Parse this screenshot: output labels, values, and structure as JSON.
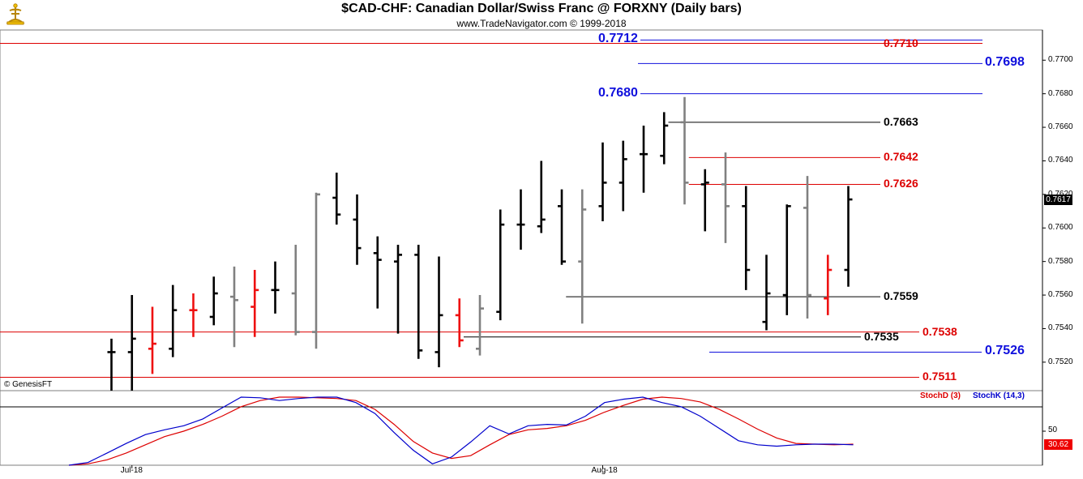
{
  "header": {
    "title": "$CAD-CHF:  Canadian Dollar/Swiss Franc @ FORXNY  (Daily bars)",
    "subtitle": "www.TradeNavigator.com © 1999-2018",
    "credit": "© GenesisFT"
  },
  "colors": {
    "black_bar": "#000000",
    "gray_bar": "#808080",
    "red_bar": "#ee1111",
    "blue_level": "#1010dd",
    "red_level": "#dd0000",
    "black_level": "#000000",
    "stoch_k": "#0000cc",
    "stoch_d": "#dd0000"
  },
  "chart_data": [
    {
      "type": "ohlc",
      "title": "$CAD-CHF:  Canadian Dollar/Swiss Franc @ FORXNY  (Daily bars)",
      "ylim": [
        0.75,
        0.7718
      ],
      "y_ticks": [
        "0.7520",
        "0.7540",
        "0.7560",
        "0.7580",
        "0.7600",
        "0.7620",
        "0.7640",
        "0.7660",
        "0.7680",
        "0.7700"
      ],
      "x_labels": [
        {
          "label": "Jul-18",
          "bar": 1
        },
        {
          "label": "Aug-18",
          "bar": 24
        }
      ],
      "last_price": "0.7617",
      "bars": [
        {
          "o": 0.7526,
          "h": 0.7534,
          "l": 0.75,
          "c": 0.7526,
          "color": "black"
        },
        {
          "o": 0.7526,
          "h": 0.756,
          "l": 0.75,
          "c": 0.7534,
          "color": "black"
        },
        {
          "o": 0.7528,
          "h": 0.7553,
          "l": 0.7513,
          "c": 0.7531,
          "color": "red"
        },
        {
          "o": 0.7528,
          "h": 0.7566,
          "l": 0.7523,
          "c": 0.7551,
          "color": "black"
        },
        {
          "o": 0.7551,
          "h": 0.7561,
          "l": 0.7535,
          "c": 0.7551,
          "color": "red"
        },
        {
          "o": 0.7547,
          "h": 0.7571,
          "l": 0.7542,
          "c": 0.7561,
          "color": "black"
        },
        {
          "o": 0.7559,
          "h": 0.7577,
          "l": 0.7529,
          "c": 0.7557,
          "color": "gray"
        },
        {
          "o": 0.7553,
          "h": 0.7575,
          "l": 0.7535,
          "c": 0.7563,
          "color": "red"
        },
        {
          "o": 0.7563,
          "h": 0.758,
          "l": 0.7549,
          "c": 0.7563,
          "color": "black"
        },
        {
          "o": 0.7561,
          "h": 0.759,
          "l": 0.7536,
          "c": 0.7538,
          "color": "gray"
        },
        {
          "o": 0.7538,
          "h": 0.7621,
          "l": 0.7528,
          "c": 0.762,
          "color": "gray"
        },
        {
          "o": 0.7618,
          "h": 0.7633,
          "l": 0.7602,
          "c": 0.7608,
          "color": "black"
        },
        {
          "o": 0.7605,
          "h": 0.762,
          "l": 0.7578,
          "c": 0.7588,
          "color": "black"
        },
        {
          "o": 0.7585,
          "h": 0.7595,
          "l": 0.7552,
          "c": 0.7581,
          "color": "black"
        },
        {
          "o": 0.758,
          "h": 0.759,
          "l": 0.7537,
          "c": 0.7584,
          "color": "black"
        },
        {
          "o": 0.7584,
          "h": 0.759,
          "l": 0.7522,
          "c": 0.7527,
          "color": "black"
        },
        {
          "o": 0.7526,
          "h": 0.7583,
          "l": 0.7517,
          "c": 0.7548,
          "color": "black"
        },
        {
          "o": 0.7548,
          "h": 0.7558,
          "l": 0.7529,
          "c": 0.7533,
          "color": "red"
        },
        {
          "o": 0.7528,
          "h": 0.756,
          "l": 0.7524,
          "c": 0.7552,
          "color": "gray"
        },
        {
          "o": 0.755,
          "h": 0.7611,
          "l": 0.7545,
          "c": 0.7602,
          "color": "black"
        },
        {
          "o": 0.7602,
          "h": 0.7623,
          "l": 0.7587,
          "c": 0.7602,
          "color": "black"
        },
        {
          "o": 0.7601,
          "h": 0.764,
          "l": 0.7597,
          "c": 0.7605,
          "color": "black"
        },
        {
          "o": 0.7613,
          "h": 0.7623,
          "l": 0.7578,
          "c": 0.758,
          "color": "black"
        },
        {
          "o": 0.758,
          "h": 0.7623,
          "l": 0.7543,
          "c": 0.7611,
          "color": "gray"
        },
        {
          "o": 0.7613,
          "h": 0.7651,
          "l": 0.7604,
          "c": 0.7627,
          "color": "black"
        },
        {
          "o": 0.7627,
          "h": 0.7652,
          "l": 0.761,
          "c": 0.7641,
          "color": "black"
        },
        {
          "o": 0.7644,
          "h": 0.7661,
          "l": 0.7621,
          "c": 0.7644,
          "color": "black"
        },
        {
          "o": 0.7643,
          "h": 0.7669,
          "l": 0.7638,
          "c": 0.7661,
          "color": "black"
        },
        {
          "o": 0.7663,
          "h": 0.7678,
          "l": 0.7614,
          "c": 0.7627,
          "color": "gray"
        },
        {
          "o": 0.7626,
          "h": 0.7635,
          "l": 0.7598,
          "c": 0.7627,
          "color": "black"
        },
        {
          "o": 0.7626,
          "h": 0.7645,
          "l": 0.7591,
          "c": 0.7613,
          "color": "gray"
        },
        {
          "o": 0.7613,
          "h": 0.7625,
          "l": 0.7563,
          "c": 0.7575,
          "color": "black"
        },
        {
          "o": 0.7544,
          "h": 0.7584,
          "l": 0.7539,
          "c": 0.7561,
          "color": "black"
        },
        {
          "o": 0.756,
          "h": 0.7614,
          "l": 0.7548,
          "c": 0.7613,
          "color": "black"
        },
        {
          "o": 0.7612,
          "h": 0.7631,
          "l": 0.7546,
          "c": 0.756,
          "color": "gray"
        },
        {
          "o": 0.7558,
          "h": 0.7584,
          "l": 0.7548,
          "c": 0.7575,
          "color": "red"
        },
        {
          "o": 0.7575,
          "h": 0.7625,
          "l": 0.7565,
          "c": 0.7617,
          "color": "black"
        }
      ],
      "levels": [
        {
          "label": "0.7712",
          "value": 0.7712,
          "color": "blue",
          "from_bar": 26,
          "to_bar": "end",
          "label_side": "left"
        },
        {
          "label": "0.7710",
          "value": 0.771,
          "color": "red",
          "from_bar": "start",
          "to_bar": "end",
          "label_side": "right"
        },
        {
          "label": "0.7698",
          "value": 0.7698,
          "color": "blue",
          "from_bar": 26,
          "to_bar": "end",
          "label_side": "right"
        },
        {
          "label": "0.7680",
          "value": 0.768,
          "color": "blue",
          "from_bar": 27,
          "to_bar": "end",
          "label_side": "left"
        },
        {
          "label": "0.7663",
          "value": 0.7663,
          "color": "black",
          "from_bar": 28,
          "to_bar": "label",
          "label_side": "right"
        },
        {
          "label": "0.7642",
          "value": 0.7642,
          "color": "red",
          "from_bar": 29,
          "to_bar": "label",
          "label_side": "right"
        },
        {
          "label": "0.7626",
          "value": 0.7626,
          "color": "red",
          "from_bar": 29,
          "to_bar": "label",
          "label_side": "right"
        },
        {
          "label": "0.7559",
          "value": 0.7559,
          "color": "black",
          "from_bar": 23,
          "to_bar": "label",
          "label_side": "right"
        },
        {
          "label": "0.7538",
          "value": 0.7538,
          "color": "red",
          "from_bar": "start",
          "to_bar": "label",
          "label_side": "right"
        },
        {
          "label": "0.7535",
          "value": 0.7535,
          "color": "black",
          "from_bar": 18,
          "to_bar": "label",
          "label_side": "right"
        },
        {
          "label": "0.7526",
          "value": 0.7526,
          "color": "blue",
          "from_bar": 30,
          "to_bar": "label",
          "label_side": "right"
        },
        {
          "label": "0.7511",
          "value": 0.7511,
          "color": "red",
          "from_bar": "start",
          "to_bar": "label",
          "label_side": "right"
        }
      ]
    },
    {
      "type": "line",
      "title": "",
      "ylim": [
        0,
        100
      ],
      "y_ticks": [
        "50"
      ],
      "last_value": "30.62",
      "series": [
        {
          "name": "StochD (3)",
          "color": "red",
          "values": [
            0,
            2,
            8,
            18,
            30,
            42,
            50,
            60,
            72,
            86,
            95,
            100,
            100,
            99,
            98,
            95,
            82,
            60,
            35,
            18,
            10,
            14,
            30,
            45,
            52,
            54,
            58,
            66,
            78,
            88,
            97,
            100,
            98,
            93,
            82,
            68,
            53,
            40,
            32,
            31,
            30,
            31
          ]
        },
        {
          "name": "StochK (14,3)",
          "color": "blue",
          "values": [
            0,
            4,
            18,
            32,
            45,
            52,
            58,
            68,
            84,
            100,
            99,
            95,
            98,
            100,
            100,
            92,
            76,
            48,
            22,
            2,
            12,
            34,
            58,
            46,
            58,
            60,
            59,
            72,
            92,
            97,
            100,
            92,
            86,
            72,
            54,
            36,
            30,
            28,
            30,
            31,
            31,
            30
          ]
        }
      ]
    }
  ]
}
